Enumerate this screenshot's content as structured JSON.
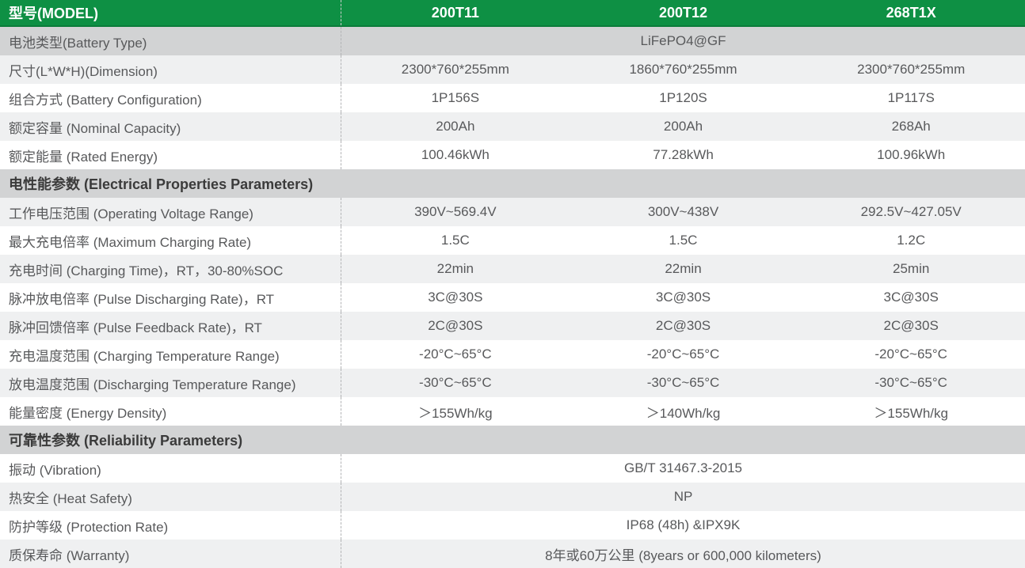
{
  "header": {
    "label": "型号(MODEL)",
    "models": [
      "200T11",
      "200T12",
      "268T1X"
    ]
  },
  "colors": {
    "header_green": "#0e9044",
    "header_green_border": "#0b7c3a",
    "header_text": "#ffffff",
    "dark_row_bg": "#d2d3d4",
    "light_row_bg": "#eff0f1",
    "white_row_bg": "#ffffff",
    "section_bg": "#d2d3d4",
    "body_text": "#58595b",
    "section_text": "#3b3b3b",
    "dash_color": "#b3b4b6",
    "header_dash_color": "#c9cdcb"
  },
  "rows": [
    {
      "type": "span",
      "bg": "dark",
      "label": "电池类型(Battery Type)",
      "value": "LiFePO4@GF"
    },
    {
      "type": "cells",
      "bg": "light",
      "label": "尺寸(L*W*H)(Dimension)",
      "values": [
        "2300*760*255mm",
        "1860*760*255mm",
        "2300*760*255mm"
      ]
    },
    {
      "type": "cells",
      "bg": "white",
      "label": "组合方式 (Battery Configuration)",
      "values": [
        "1P156S",
        "1P120S",
        "1P117S"
      ]
    },
    {
      "type": "cells",
      "bg": "light",
      "label": "额定容量 (Nominal Capacity)",
      "values": [
        "200Ah",
        "200Ah",
        "268Ah"
      ]
    },
    {
      "type": "cells",
      "bg": "white",
      "label": "额定能量 (Rated Energy)",
      "values": [
        "100.46kWh",
        "77.28kWh",
        "100.96kWh"
      ]
    },
    {
      "type": "section",
      "bg": "section",
      "label": "电性能参数 (Electrical Properties Parameters)"
    },
    {
      "type": "cells",
      "bg": "light",
      "label": "工作电压范围 (Operating Voltage Range)",
      "values": [
        "390V~569.4V",
        "300V~438V",
        "292.5V~427.05V"
      ]
    },
    {
      "type": "cells",
      "bg": "white",
      "label": "最大充电倍率 (Maximum Charging Rate)",
      "values": [
        "1.5C",
        "1.5C",
        "1.2C"
      ]
    },
    {
      "type": "cells",
      "bg": "light",
      "label": "充电时间 (Charging Time)，RT，30-80%SOC",
      "values": [
        "22min",
        "22min",
        "25min"
      ]
    },
    {
      "type": "cells",
      "bg": "white",
      "label": "脉冲放电倍率 (Pulse Discharging Rate)，RT",
      "values": [
        "3C@30S",
        "3C@30S",
        "3C@30S"
      ]
    },
    {
      "type": "cells",
      "bg": "light",
      "label": "脉冲回馈倍率 (Pulse Feedback Rate)，RT",
      "values": [
        "2C@30S",
        "2C@30S",
        "2C@30S"
      ]
    },
    {
      "type": "cells",
      "bg": "white",
      "label": "充电温度范围 (Charging Temperature Range)",
      "values": [
        "-20°C~65°C",
        "-20°C~65°C",
        "-20°C~65°C"
      ]
    },
    {
      "type": "cells",
      "bg": "light",
      "label": "放电温度范围 (Discharging Temperature Range)",
      "values": [
        "-30°C~65°C",
        "-30°C~65°C",
        "-30°C~65°C"
      ]
    },
    {
      "type": "cells",
      "bg": "white",
      "label": "能量密度 (Energy Density)",
      "values": [
        "＞155Wh/kg",
        "＞140Wh/kg",
        "＞155Wh/kg"
      ]
    },
    {
      "type": "section",
      "bg": "section",
      "label": "可靠性参数 (Reliability Parameters)"
    },
    {
      "type": "span",
      "bg": "white",
      "label": "振动 (Vibration)",
      "value": "GB/T 31467.3-2015"
    },
    {
      "type": "span",
      "bg": "light",
      "label": "热安全 (Heat Safety)",
      "value": "NP"
    },
    {
      "type": "span",
      "bg": "white",
      "label": "防护等级 (Protection Rate)",
      "value": "IP68 (48h) &IPX9K"
    },
    {
      "type": "span",
      "bg": "light",
      "label": "质保寿命 (Warranty)",
      "value": "8年或60万公里 (8years or 600,000 kilometers)"
    }
  ]
}
